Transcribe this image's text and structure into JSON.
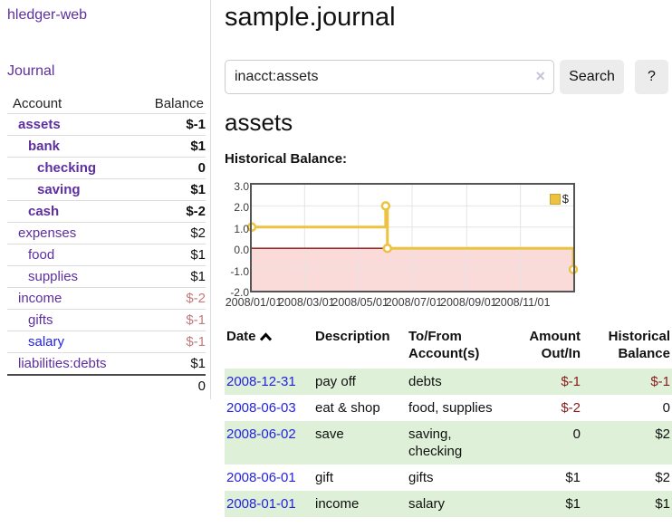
{
  "colors": {
    "link-purple": "#5e2f9e",
    "link-blue": "#2422df",
    "negative-strong": "#871c1c",
    "negative-muted": "#c17c7c",
    "row-green": "#dff0d8",
    "button-gray": "#ececec",
    "divider-gray": "#dddddd"
  },
  "sidebar": {
    "brand": "hledger-web",
    "nav": {
      "journal": "Journal"
    },
    "accounts_header": {
      "account": "Account",
      "balance": "Balance"
    },
    "accounts": [
      {
        "name": "assets",
        "balance": "$-1",
        "depth_class": "d1",
        "row_class": "bold",
        "name_class": "",
        "balance_class": "neg-strong"
      },
      {
        "name": "bank",
        "balance": "$1",
        "depth_class": "d2",
        "row_class": "bold",
        "name_class": "",
        "balance_class": ""
      },
      {
        "name": "checking",
        "balance": "0",
        "depth_class": "d3",
        "row_class": "bold",
        "name_class": "",
        "balance_class": ""
      },
      {
        "name": "saving",
        "balance": "$1",
        "depth_class": "d3",
        "row_class": "bold",
        "name_class": "",
        "balance_class": ""
      },
      {
        "name": "cash",
        "balance": "$-2",
        "depth_class": "d2",
        "row_class": "bold",
        "name_class": "",
        "balance_class": "neg-strong"
      },
      {
        "name": "expenses",
        "balance": "$2",
        "depth_class": "d1",
        "row_class": "",
        "name_class": "",
        "balance_class": ""
      },
      {
        "name": "food",
        "balance": "$1",
        "depth_class": "d2",
        "row_class": "",
        "name_class": "",
        "balance_class": ""
      },
      {
        "name": "supplies",
        "balance": "$1",
        "depth_class": "d2",
        "row_class": "",
        "name_class": "",
        "balance_class": ""
      },
      {
        "name": "income",
        "balance": "$-2",
        "depth_class": "d1",
        "row_class": "",
        "name_class": "",
        "balance_class": "neg-muted"
      },
      {
        "name": "gifts",
        "balance": "$-1",
        "depth_class": "d2",
        "row_class": "",
        "name_class": "",
        "balance_class": "neg-muted"
      },
      {
        "name": "salary",
        "balance": "$-1",
        "depth_class": "d2",
        "row_class": "",
        "name_class": "unvisited",
        "balance_class": "neg-muted"
      },
      {
        "name": "liabilities:debts",
        "balance": "$1",
        "depth_class": "d1",
        "row_class": "",
        "name_class": "",
        "balance_class": ""
      }
    ],
    "total": "0"
  },
  "main": {
    "title": "sample.journal",
    "search": {
      "value": "inacct:assets",
      "clear_label": "×",
      "button": "Search",
      "help": "?"
    },
    "account_heading": "assets",
    "chart_title": "Historical Balance:"
  },
  "chart_data": {
    "type": "line",
    "title": "Historical Balance:",
    "x_range": [
      "2008-01-01",
      "2008-12-31"
    ],
    "ylim": [
      -2,
      3
    ],
    "y_ticks": [
      3,
      2,
      1,
      0,
      -1,
      -2
    ],
    "x_ticks": [
      {
        "date": "2008-01-01",
        "label": "2008/01/01"
      },
      {
        "date": "2008-03-01",
        "label": "2008/03/01"
      },
      {
        "date": "2008-05-01",
        "label": "2008/05/01"
      },
      {
        "date": "2008-07-01",
        "label": "2008/07/01"
      },
      {
        "date": "2008-09-01",
        "label": "2008/09/01"
      },
      {
        "date": "2008-11-01",
        "label": "2008/11/01"
      }
    ],
    "series": [
      {
        "name": "$",
        "color": "#edc240",
        "step": true,
        "points": [
          [
            "2008-01-01",
            1
          ],
          [
            "2008-06-01",
            2
          ],
          [
            "2008-06-03",
            0
          ],
          [
            "2008-12-31",
            -1
          ]
        ]
      }
    ],
    "grid": {
      "border_color": "#545454",
      "grid_color": "#e4e4e4",
      "zero_line_color": "#8f1010",
      "negative_region_color": "#fbdada"
    },
    "legend_position": "top-right"
  },
  "register": {
    "columns": [
      "Date",
      "Description",
      "To/From Account(s)",
      "Amount Out/In",
      "Historical Balance"
    ],
    "rows": [
      {
        "date": "2008-12-31",
        "description": "pay off",
        "accounts": "debts",
        "amount": "$-1",
        "balance": "$-1",
        "amount_class": "neg",
        "balance_class": "neg"
      },
      {
        "date": "2008-06-03",
        "description": "eat & shop",
        "accounts": "food, supplies",
        "amount": "$-2",
        "balance": "0",
        "amount_class": "neg",
        "balance_class": ""
      },
      {
        "date": "2008-06-02",
        "description": "save",
        "accounts": "saving,\nchecking",
        "amount": "0",
        "balance": "$2",
        "amount_class": "",
        "balance_class": ""
      },
      {
        "date": "2008-06-01",
        "description": "gift",
        "accounts": "gifts",
        "amount": "$1",
        "balance": "$2",
        "amount_class": "",
        "balance_class": ""
      },
      {
        "date": "2008-01-01",
        "description": "income",
        "accounts": "salary",
        "amount": "$1",
        "balance": "$1",
        "amount_class": "",
        "balance_class": ""
      }
    ]
  }
}
